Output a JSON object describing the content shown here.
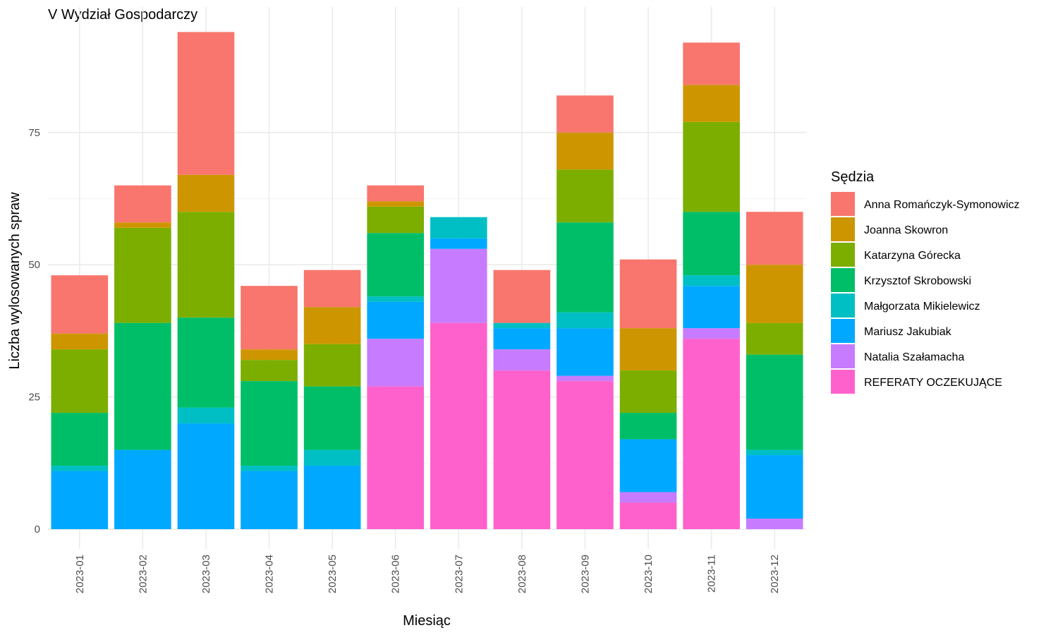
{
  "chart_data": {
    "type": "bar",
    "stacked": true,
    "title": "V Wydział Gospodarczy",
    "xlabel": "Miesiąc",
    "ylabel": "Liczba wylosowanych spraw",
    "ylim": [
      0,
      97
    ],
    "yticks": [
      0,
      25,
      50,
      75
    ],
    "grid": true,
    "legend_title": "Sędzia",
    "legend_position": "right",
    "categories": [
      "2023-01",
      "2023-02",
      "2023-03",
      "2023-04",
      "2023-05",
      "2023-06",
      "2023-07",
      "2023-08",
      "2023-09",
      "2023-10",
      "2023-11",
      "2023-12"
    ],
    "series": [
      {
        "name": "REFERATY OCZEKUJĄCE",
        "color": "#FF61CC",
        "values": [
          0,
          0,
          0,
          0,
          0,
          27,
          39,
          30,
          28,
          5,
          36,
          0
        ]
      },
      {
        "name": "Natalia Szałamacha",
        "color": "#C77CFF",
        "values": [
          0,
          0,
          0,
          0,
          0,
          9,
          14,
          4,
          1,
          2,
          2,
          2
        ]
      },
      {
        "name": "Mariusz Jakubiak",
        "color": "#00A9FF",
        "values": [
          11,
          15,
          20,
          11,
          12,
          7,
          2,
          4,
          9,
          10,
          8,
          12
        ]
      },
      {
        "name": "Małgorzata Mikielewicz",
        "color": "#00BFC4",
        "values": [
          1,
          0,
          3,
          1,
          3,
          1,
          4,
          1,
          3,
          0,
          2,
          1
        ]
      },
      {
        "name": "Krzysztof Skrobowski",
        "color": "#00BE67",
        "values": [
          10,
          24,
          17,
          16,
          12,
          12,
          0,
          0,
          17,
          5,
          12,
          18
        ]
      },
      {
        "name": "Katarzyna Górecka",
        "color": "#7CAE00",
        "values": [
          12,
          18,
          20,
          4,
          8,
          5,
          0,
          0,
          10,
          8,
          17,
          6
        ]
      },
      {
        "name": "Joanna Skowron",
        "color": "#CD9600",
        "values": [
          3,
          1,
          7,
          2,
          7,
          1,
          0,
          0,
          7,
          8,
          7,
          11
        ]
      },
      {
        "name": "Anna Romańczyk-Symonowicz",
        "color": "#F8766D",
        "values": [
          11,
          7,
          27,
          12,
          7,
          3,
          0,
          10,
          7,
          13,
          8,
          10
        ]
      }
    ],
    "legend_order": [
      "Anna Romańczyk-Symonowicz",
      "Joanna Skowron",
      "Katarzyna Górecka",
      "Krzysztof Skrobowski",
      "Małgorzata Mikielewicz",
      "Mariusz Jakubiak",
      "Natalia Szałamacha",
      "REFERATY OCZEKUJĄCE"
    ]
  }
}
